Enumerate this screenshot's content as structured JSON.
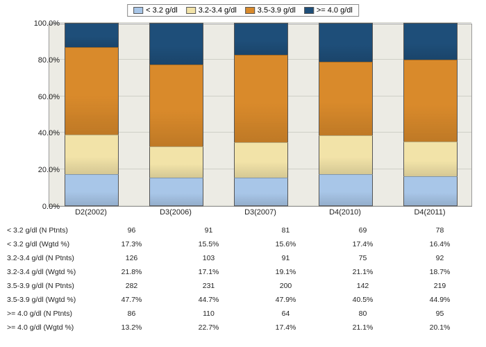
{
  "chart": {
    "type": "stacked-bar-100pct",
    "background_color": "#ecebe4",
    "grid_color": "#cfcfc7",
    "border_color": "#999999",
    "ylim": [
      0,
      100
    ],
    "ytick_step": 20,
    "yticks": [
      "0.0%",
      "20.0%",
      "40.0%",
      "60.0%",
      "80.0%",
      "100.0%"
    ],
    "categories": [
      "D2(2002)",
      "D3(2006)",
      "D3(2007)",
      "D4(2010)",
      "D4(2011)"
    ],
    "legend": [
      {
        "label": "< 3.2 g/dl",
        "color": "#a8c6e8"
      },
      {
        "label": "3.2-3.4 g/dl",
        "color": "#f2e3a8"
      },
      {
        "label": "3.5-3.9 g/dl",
        "color": "#d98a2b"
      },
      {
        "label": ">= 4.0 g/dl",
        "color": "#1e4e79"
      }
    ],
    "bar_width_pct": 12.8,
    "series_pct": {
      "lt32": [
        17.3,
        15.5,
        15.6,
        17.4,
        16.4
      ],
      "r32_34": [
        21.8,
        17.1,
        19.1,
        21.1,
        18.7
      ],
      "r35_39": [
        47.7,
        44.7,
        47.9,
        40.5,
        44.9
      ],
      "ge40": [
        13.2,
        22.7,
        17.4,
        21.1,
        20.1
      ]
    },
    "fonts": {
      "axis_fontsize": 11,
      "legend_fontsize": 11,
      "table_fontsize": 10.5
    }
  },
  "table": {
    "row_labels": [
      "< 3.2 g/dl  (N Ptnts)",
      "< 3.2 g/dl  (Wgtd %)",
      "3.2-3.4 g/dl (N Ptnts)",
      "3.2-3.4 g/dl (Wgtd %)",
      "3.5-3.9 g/dl (N Ptnts)",
      "3.5-3.9 g/dl (Wgtd %)",
      ">= 4.0 g/dl  (N Ptnts)",
      ">= 4.0 g/dl  (Wgtd %)"
    ],
    "rows": [
      [
        "96",
        "91",
        "81",
        "69",
        "78"
      ],
      [
        "17.3%",
        "15.5%",
        "15.6%",
        "17.4%",
        "16.4%"
      ],
      [
        "126",
        "103",
        "91",
        "75",
        "92"
      ],
      [
        "21.8%",
        "17.1%",
        "19.1%",
        "21.1%",
        "18.7%"
      ],
      [
        "282",
        "231",
        "200",
        "142",
        "219"
      ],
      [
        "47.7%",
        "44.7%",
        "47.9%",
        "40.5%",
        "44.9%"
      ],
      [
        "86",
        "110",
        "64",
        "80",
        "95"
      ],
      [
        "13.2%",
        "22.7%",
        "17.4%",
        "21.1%",
        "20.1%"
      ]
    ]
  }
}
